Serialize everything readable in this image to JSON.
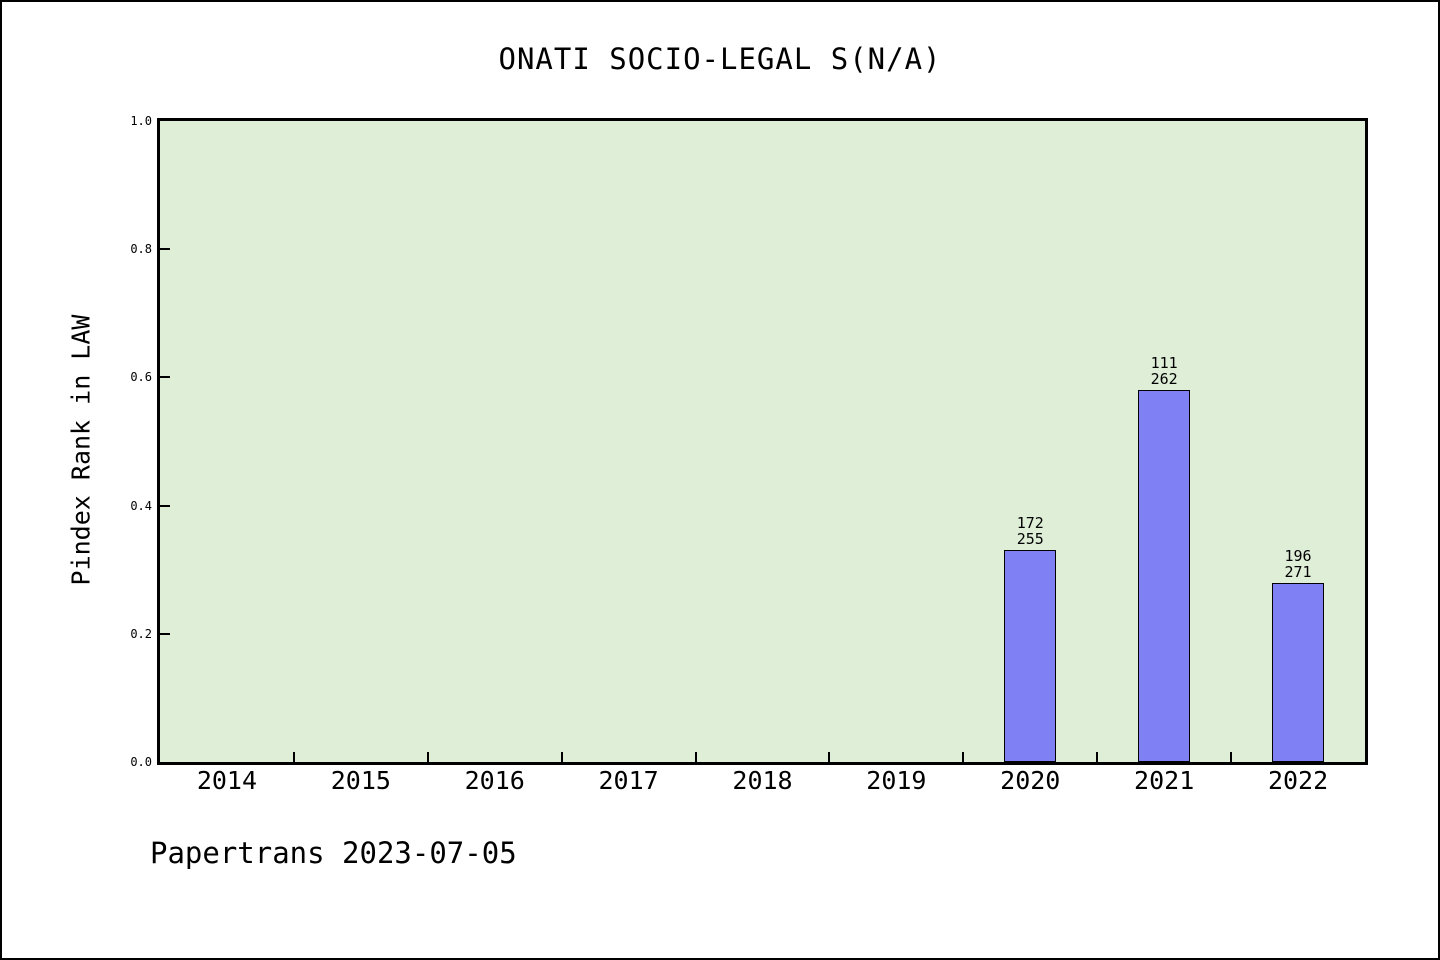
{
  "header": {
    "title": "ONATI SOCIO-LEGAL S(N/A)"
  },
  "footer": {
    "text": "Papertrans 2023-07-05"
  },
  "colors": {
    "plot_background": "#dfeed6",
    "bar_fill": "#8080f5",
    "bar_edge": "#000000",
    "axis": "#000000",
    "figure_background": "#ffffff"
  },
  "chart_data": {
    "type": "bar",
    "title": "ONATI SOCIO-LEGAL S(N/A)",
    "xlabel": "",
    "ylabel": "Pindex Rank in LAW",
    "categories": [
      "2014",
      "2015",
      "2016",
      "2017",
      "2018",
      "2019",
      "2020",
      "2021",
      "2022"
    ],
    "values": [
      null,
      null,
      null,
      null,
      null,
      null,
      0.33,
      0.58,
      0.28
    ],
    "bar_value_labels": [
      null,
      null,
      null,
      null,
      null,
      null,
      [
        "172",
        "255"
      ],
      [
        "111",
        "262"
      ],
      [
        "196",
        "271"
      ]
    ],
    "ylim": [
      0,
      1
    ],
    "yticks": [
      0.0,
      0.2,
      0.4,
      0.6,
      0.8,
      1.0
    ],
    "ytick_labels": [
      "0.0",
      "0.2",
      "0.4",
      "0.6",
      "0.8",
      "1.0"
    ],
    "grid": false,
    "legend": null
  }
}
